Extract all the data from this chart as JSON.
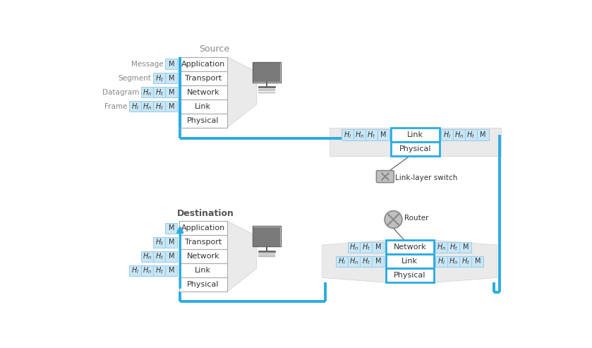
{
  "bg": "#ffffff",
  "blue": "#29abe2",
  "pkt_fill": "#c8e6f5",
  "pkt_edge": "#99cce8",
  "lyr_fill": "#ffffff",
  "lyr_edge": "#aaaaaa",
  "fun_fill": "#e8e8e8",
  "fun_edge": "#cccccc",
  "txt": "#333333",
  "gray_txt": "#888888",
  "bold_txt": "#555555",
  "icon_body": "#d8d8d8",
  "icon_screen": "#7a7a7a",
  "icon_edge": "#666666",
  "sw_icon_fill": "#c0c0c0",
  "sw_icon_edge": "#888888",
  "rt_icon_fill": "#c0c0c0",
  "rt_icon_edge": "#888888",
  "src_title": "Source",
  "dst_title": "Destination",
  "sw_title": "Link-layer switch",
  "rt_title": "Router",
  "src_layers": [
    "Application",
    "Transport",
    "Network",
    "Link",
    "Physical"
  ],
  "sw_layers": [
    "Link",
    "Physical"
  ],
  "rt_layers": [
    "Network",
    "Link",
    "Physical"
  ],
  "dst_layers": [
    "Application",
    "Transport",
    "Network",
    "Link",
    "Physical"
  ],
  "src_row_labels": [
    "Message",
    "Segment",
    "Datagram",
    "Frame"
  ],
  "src_pkts": [
    [
      "M"
    ],
    [
      "Ht",
      "M"
    ],
    [
      "Hn",
      "Ht",
      "M"
    ],
    [
      "Hl",
      "Hn",
      "Ht",
      "M"
    ]
  ],
  "sw_left_pkts": [
    "Hl",
    "Hn",
    "Ht",
    "M"
  ],
  "sw_right_pkts": [
    "Hl",
    "Hn",
    "Ht",
    "M"
  ],
  "rt_left_pkts": [
    [
      "Hn",
      "Ht",
      "M"
    ],
    [
      "Hl",
      "Hn",
      "Ht",
      "M"
    ]
  ],
  "rt_right_pkts": [
    [
      "Hn",
      "Ht",
      "M"
    ],
    [
      "Hl",
      "Hn",
      "Ht",
      "M"
    ]
  ],
  "dst_pkts": [
    [
      "M"
    ],
    [
      "Ht",
      "M"
    ],
    [
      "Hn",
      "Ht",
      "M"
    ],
    [
      "Hl",
      "Hn",
      "Ht",
      "M"
    ]
  ]
}
